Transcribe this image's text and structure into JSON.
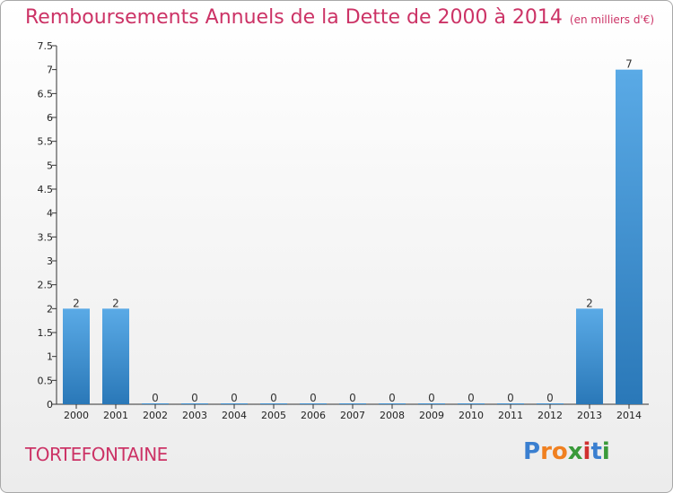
{
  "header": {
    "title": "Remboursements Annuels de la Dette de 2000 à 2014",
    "subtitle": "(en milliers d'€)"
  },
  "footer": {
    "commune": "TORTEFONTAINE",
    "logo": {
      "letters": [
        "P",
        "r",
        "o",
        "x",
        "i",
        "t",
        "i"
      ],
      "colors": [
        "#3a7fd0",
        "#f08020",
        "#f08020",
        "#3a9a3a",
        "#d03030",
        "#3a7fd0",
        "#3a9a3a"
      ]
    }
  },
  "chart_data": {
    "type": "bar",
    "title": "Remboursements Annuels de la Dette de 2000 à 2014",
    "xlabel": "",
    "ylabel": "",
    "ylim": [
      0,
      7.5
    ],
    "grid": false,
    "categories": [
      "2000",
      "2001",
      "2002",
      "2003",
      "2004",
      "2005",
      "2006",
      "2007",
      "2008",
      "2009",
      "2010",
      "2011",
      "2012",
      "2013",
      "2014"
    ],
    "values": [
      2,
      2,
      0,
      0,
      0,
      0,
      0,
      0,
      0,
      0,
      0,
      0,
      0,
      2,
      7
    ],
    "data_labels": [
      "2",
      "2",
      "0",
      "0",
      "0",
      "0",
      "0",
      "0",
      "0",
      "0",
      "0",
      "0",
      "0",
      "2",
      "7"
    ],
    "y_ticks": [
      {
        "value": 0,
        "label": "0"
      },
      {
        "value": 0.5,
        "label": "0.5"
      },
      {
        "value": 1,
        "label": "1"
      },
      {
        "value": 1.5,
        "label": "1.5"
      },
      {
        "value": 2,
        "label": "2"
      },
      {
        "value": 2.5,
        "label": "2.5"
      },
      {
        "value": 3,
        "label": "3"
      },
      {
        "value": 3.5,
        "label": "3.5"
      },
      {
        "value": 4,
        "label": "4"
      },
      {
        "value": 4.5,
        "label": "4.5"
      },
      {
        "value": 5,
        "label": "5"
      },
      {
        "value": 5.5,
        "label": "5.5"
      },
      {
        "value": 6,
        "label": "6"
      },
      {
        "value": 6.5,
        "label": "6.5"
      },
      {
        "value": 7,
        "label": "7"
      },
      {
        "value": 7.5,
        "label": "7.5"
      }
    ],
    "colors": {
      "bar_light": "#5aaae6",
      "bar_dark": "#2a78b8",
      "axis": "#333333",
      "title": "#cc3366"
    }
  }
}
